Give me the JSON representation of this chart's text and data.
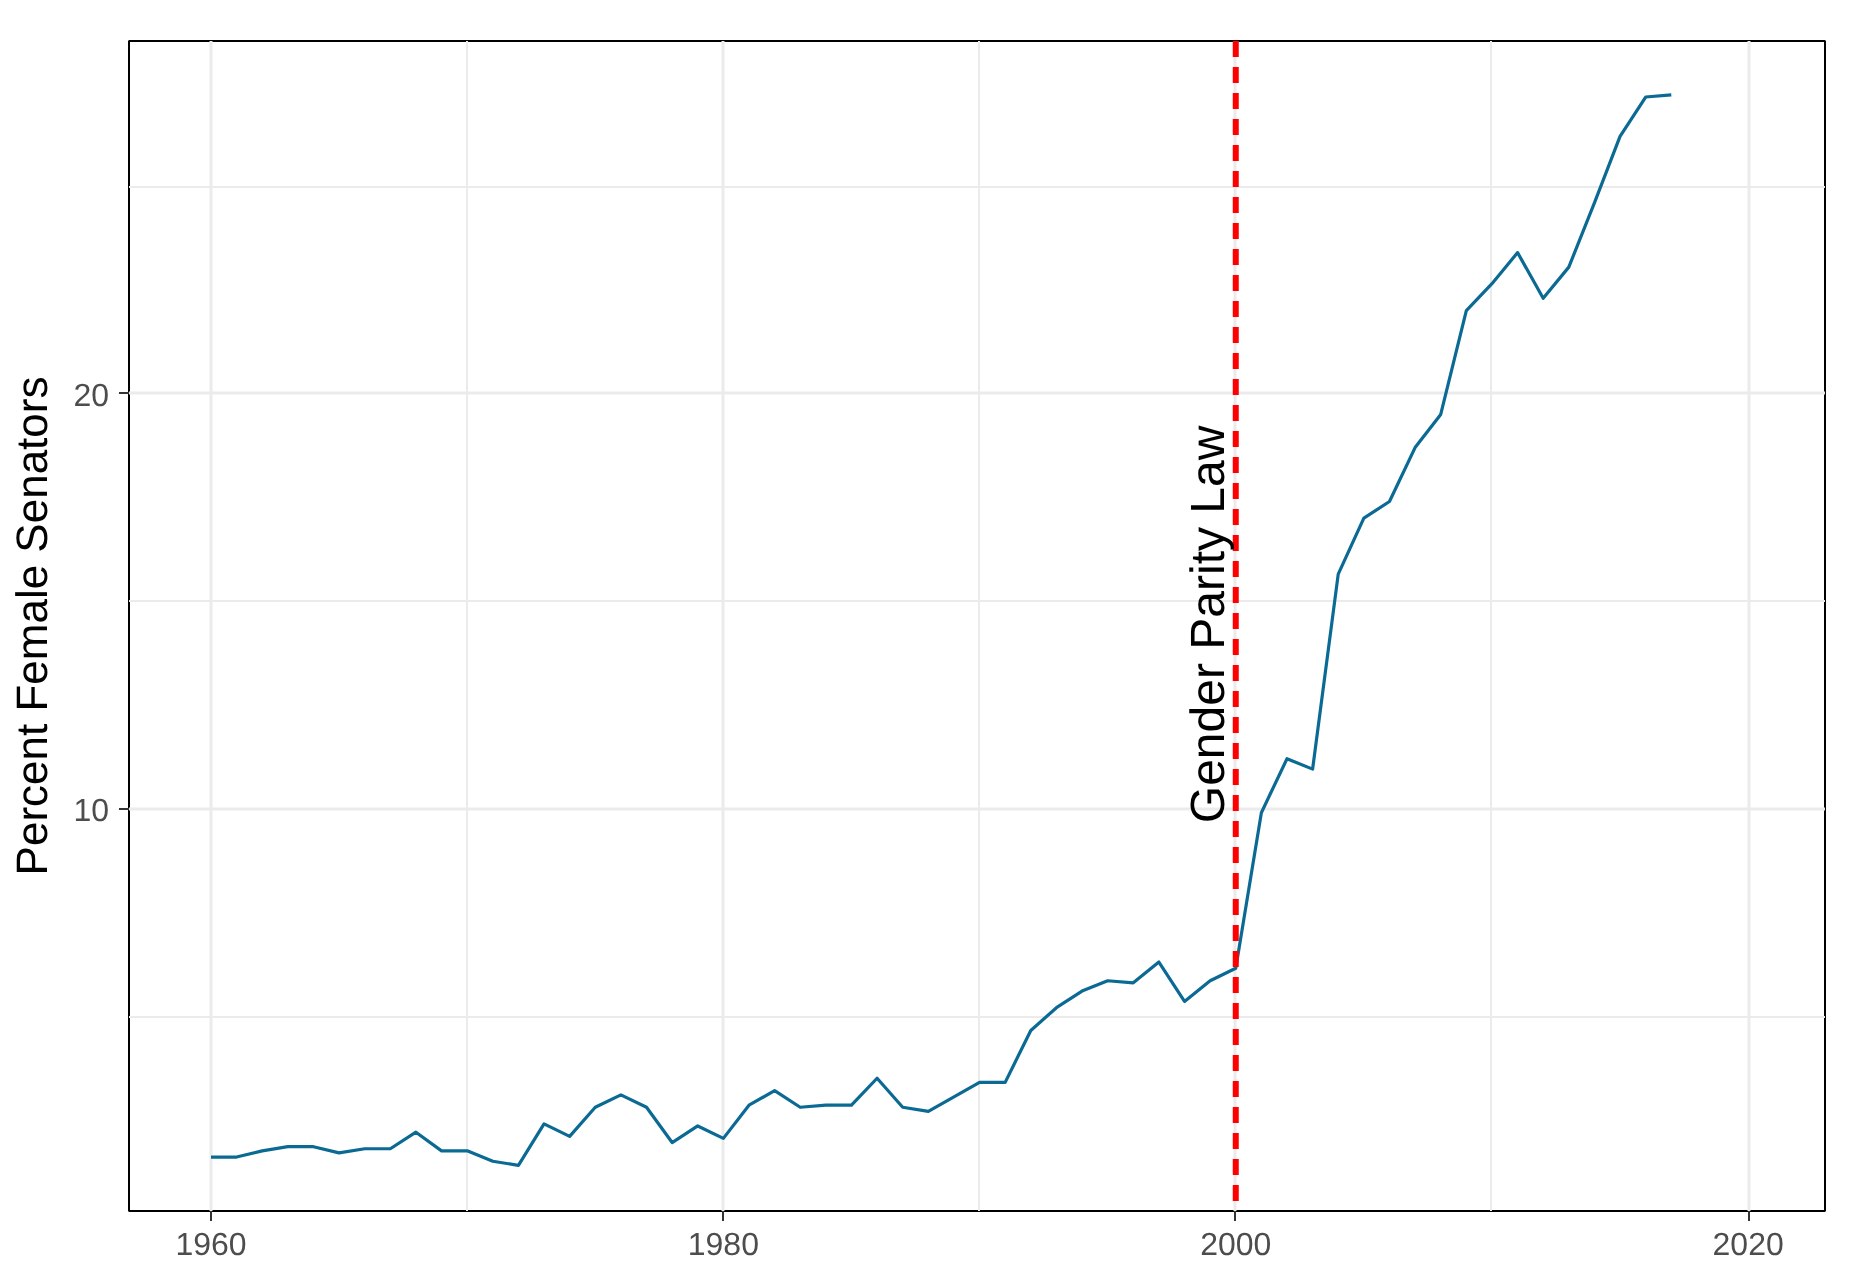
{
  "chart_data": {
    "type": "line",
    "ylabel": "Percent Female Senators",
    "x": [
      1960,
      1961,
      1962,
      1963,
      1964,
      1965,
      1966,
      1967,
      1968,
      1969,
      1970,
      1971,
      1972,
      1973,
      1974,
      1975,
      1976,
      1977,
      1978,
      1979,
      1980,
      1981,
      1982,
      1983,
      1984,
      1985,
      1986,
      1987,
      1988,
      1989,
      1990,
      1991,
      1992,
      1993,
      1994,
      1995,
      1996,
      1997,
      1998,
      1999,
      2000,
      2001,
      2002,
      2003,
      2004,
      2005,
      2006,
      2007,
      2008,
      2009,
      2010,
      2011,
      2012,
      2013,
      2014,
      2015,
      2016,
      2017
    ],
    "series": [
      {
        "color": "#0b6a94",
        "values": [
          1.6,
          1.6,
          1.75,
          1.85,
          1.85,
          1.7,
          1.8,
          1.8,
          2.2,
          1.75,
          1.75,
          1.5,
          1.4,
          2.4,
          2.1,
          2.8,
          3.1,
          2.8,
          1.95,
          2.35,
          2.05,
          2.85,
          3.2,
          2.8,
          2.85,
          2.85,
          3.5,
          2.8,
          2.7,
          3.05,
          3.4,
          3.4,
          4.65,
          5.2,
          5.6,
          5.85,
          5.8,
          6.3,
          5.35,
          5.85,
          6.15,
          9.9,
          11.2,
          10.95,
          15.65,
          17.0,
          17.4,
          18.7,
          19.5,
          22.0,
          22.65,
          23.4,
          22.3,
          23.05,
          24.6,
          26.2,
          27.15,
          27.2
        ]
      }
    ],
    "xlim": [
      1956.8,
      2023
    ],
    "ylim": [
      0.3,
      28.5
    ],
    "xticks": [
      1960,
      1980,
      2000,
      2020
    ],
    "yticks": [
      10,
      20
    ],
    "grid": true,
    "ref_lines": [
      {
        "axis": "x",
        "value": 2000,
        "label": "Gender Parity Law",
        "color": "#ff0000",
        "line_style": "dashed"
      }
    ]
  }
}
